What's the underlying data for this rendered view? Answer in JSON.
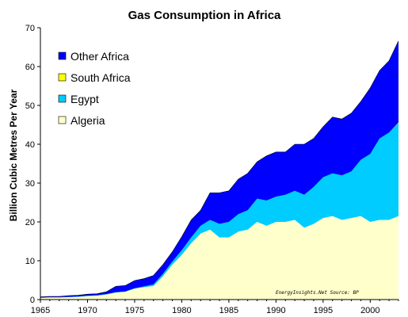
{
  "chart_data": {
    "type": "area",
    "title": "Gas Consumption in Africa",
    "ylabel": "Billion Cubic Metres Per Year",
    "xlabel": "",
    "xlim": [
      1965,
      2003
    ],
    "ylim": [
      0,
      70
    ],
    "x_ticks": [
      "1965",
      "1970",
      "1975",
      "1980",
      "1985",
      "1990",
      "1995",
      "2000"
    ],
    "y_ticks": [
      "0",
      "10",
      "20",
      "30",
      "40",
      "50",
      "60",
      "70"
    ],
    "stacked": true,
    "legend_position": "top-left",
    "credit": "EnergyInsights.Net  Source: BP",
    "x": [
      1965,
      1966,
      1967,
      1968,
      1969,
      1970,
      1971,
      1972,
      1973,
      1974,
      1975,
      1976,
      1977,
      1978,
      1979,
      1980,
      1981,
      1982,
      1983,
      1984,
      1985,
      1986,
      1987,
      1988,
      1989,
      1990,
      1991,
      1992,
      1993,
      1994,
      1995,
      1996,
      1997,
      1998,
      1999,
      2000,
      2001,
      2002,
      2003
    ],
    "series": [
      {
        "name": "Algeria",
        "color": "#FFFFCC",
        "values": [
          0.4,
          0.5,
          0.5,
          0.6,
          0.7,
          0.9,
          1.0,
          1.3,
          1.8,
          2.0,
          2.8,
          3.2,
          3.5,
          6.0,
          9.0,
          11.5,
          14.5,
          17.0,
          18.0,
          16.0,
          16.0,
          17.5,
          18.0,
          20.0,
          19.0,
          20.0,
          20.0,
          20.5,
          18.5,
          19.5,
          21.0,
          21.5,
          20.5,
          21.0,
          21.5,
          20.0,
          20.5,
          20.5,
          21.5
        ]
      },
      {
        "name": "Egypt",
        "color": "#00CCFF",
        "values": [
          0.1,
          0.1,
          0.1,
          0.1,
          0.1,
          0.1,
          0.1,
          0.1,
          0.1,
          0.1,
          0.1,
          0.2,
          0.4,
          0.6,
          0.8,
          1.2,
          1.5,
          2.0,
          2.5,
          3.5,
          4.0,
          4.5,
          5.0,
          6.0,
          6.5,
          6.5,
          7.0,
          7.5,
          8.5,
          9.5,
          10.5,
          11.0,
          11.5,
          12.0,
          14.5,
          17.5,
          21.0,
          22.5,
          24.0
        ]
      },
      {
        "name": "South Africa",
        "color": "#FFFF00",
        "values": [
          0,
          0,
          0,
          0,
          0,
          0,
          0,
          0,
          0,
          0,
          0,
          0,
          0,
          0,
          0,
          0,
          0,
          0,
          0,
          0,
          0,
          0,
          0,
          0,
          0,
          0,
          0,
          0,
          0,
          0,
          0,
          0,
          0,
          0,
          0,
          0,
          0,
          0,
          0.1
        ]
      },
      {
        "name": "Other Africa",
        "color": "#0000FF",
        "values": [
          0.2,
          0.2,
          0.2,
          0.3,
          0.3,
          0.4,
          0.4,
          0.6,
          1.5,
          1.5,
          2.0,
          2.0,
          2.3,
          2.4,
          2.5,
          3.5,
          4.5,
          4.0,
          7.0,
          8.0,
          8.0,
          9.0,
          9.5,
          9.5,
          11.5,
          11.5,
          11.0,
          12.0,
          13.0,
          12.5,
          13.0,
          14.5,
          14.5,
          15.0,
          15.0,
          17.0,
          17.5,
          18.5,
          21.0
        ]
      }
    ]
  }
}
